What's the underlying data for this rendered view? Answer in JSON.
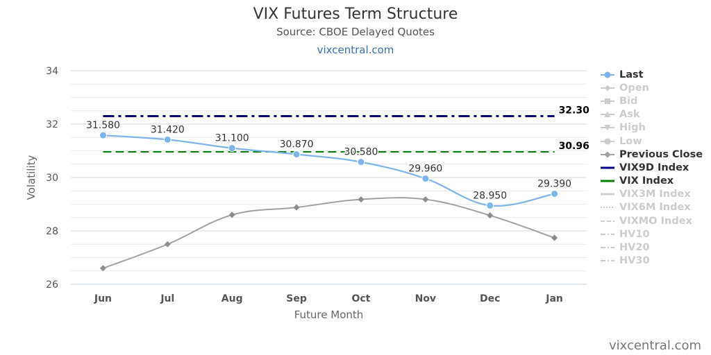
{
  "header": {
    "title": "VIX Futures Term Structure",
    "subtitle": "Source: CBOE Delayed Quotes",
    "link": "vixcentral.com"
  },
  "credit": "vixcentral.com",
  "colors": {
    "last": "#7cb5ec",
    "previous_close": "#a0a0a0",
    "vix9d": "#000080",
    "vix": "#008000",
    "hidden": "#cccccc",
    "grid": "#e0e0e0"
  },
  "chart_data": {
    "type": "line",
    "xlabel": "Future Month",
    "ylabel": "Volatility",
    "categories": [
      "Jun",
      "Jul",
      "Aug",
      "Sep",
      "Oct",
      "Nov",
      "Dec",
      "Jan"
    ],
    "ylim": [
      26,
      34
    ],
    "yticks": [
      26,
      28,
      30,
      32,
      34
    ],
    "grid": true,
    "legend_position": "right",
    "series": [
      {
        "name": "Last",
        "values": [
          31.58,
          31.42,
          31.1,
          30.87,
          30.58,
          29.96,
          28.95,
          29.39
        ],
        "labels": [
          "31.580",
          "31.420",
          "31.100",
          "30.870",
          "30.580",
          "29.960",
          "28.950",
          "29.390"
        ],
        "style": "solid",
        "marker": "circle",
        "color": "#7cb5ec",
        "visible": true
      },
      {
        "name": "Previous Close",
        "values": [
          26.6,
          27.5,
          28.6,
          28.88,
          29.18,
          29.18,
          28.58,
          27.74
        ],
        "style": "solid",
        "marker": "diamond",
        "color": "#a0a0a0",
        "visible": true
      },
      {
        "name": "VIX9D Index",
        "constant": 32.3,
        "label": "32.30",
        "style": "dashdot",
        "color": "#000080",
        "visible": true
      },
      {
        "name": "VIX Index",
        "constant": 30.96,
        "label": "30.96",
        "style": "dash",
        "color": "#008000",
        "visible": true
      }
    ],
    "legend": [
      {
        "name": "Last",
        "symbol": "circle",
        "visible": true,
        "color": "#7cb5ec"
      },
      {
        "name": "Open",
        "symbol": "diamond",
        "visible": false
      },
      {
        "name": "Bid",
        "symbol": "square",
        "visible": false
      },
      {
        "name": "Ask",
        "symbol": "triangle",
        "visible": false
      },
      {
        "name": "High",
        "symbol": "triangle-down",
        "visible": false
      },
      {
        "name": "Low",
        "symbol": "circle",
        "visible": false
      },
      {
        "name": "Previous Close",
        "symbol": "diamond",
        "visible": true,
        "color": "#a0a0a0"
      },
      {
        "name": "VIX9D Index",
        "symbol": "line",
        "visible": true,
        "color": "#000080"
      },
      {
        "name": "VIX Index",
        "symbol": "line",
        "visible": true,
        "color": "#008000"
      },
      {
        "name": "VIX3M Index",
        "symbol": "line",
        "visible": false
      },
      {
        "name": "VIX6M Index",
        "symbol": "dot",
        "visible": false
      },
      {
        "name": "VIXMO Index",
        "symbol": "dash",
        "visible": false
      },
      {
        "name": "HV10",
        "symbol": "dashdot",
        "visible": false
      },
      {
        "name": "HV20",
        "symbol": "dashdot",
        "visible": false
      },
      {
        "name": "HV30",
        "symbol": "dashdot",
        "visible": false
      }
    ]
  }
}
